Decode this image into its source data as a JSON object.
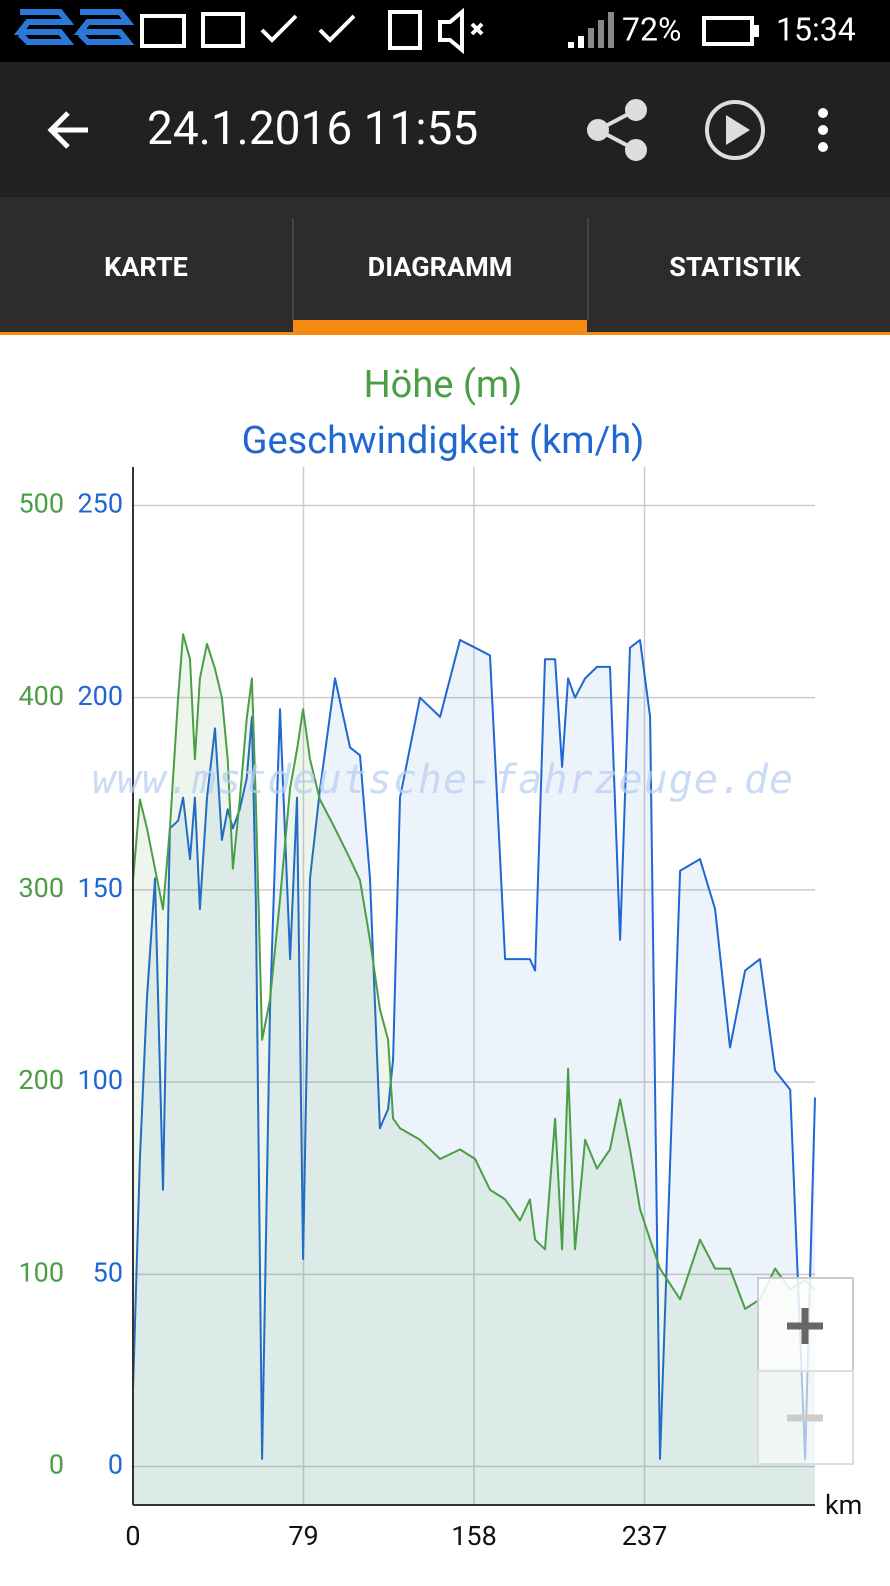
{
  "status_bar": {
    "battery": "72%",
    "time": "15:34"
  },
  "app_bar": {
    "title": "24.1.2016 11:55"
  },
  "tabs": [
    "KARTE",
    "DIAGRAMM",
    "STATISTIK"
  ],
  "watermark": "www.mstdeutsche-fahrzeuge.de",
  "chart_data": {
    "type": "line",
    "area": true,
    "grid": true,
    "x_label": "km",
    "xlim": [
      0,
      316
    ],
    "xticks": [
      0,
      79,
      158,
      237
    ],
    "ylim": [
      -10,
      260
    ],
    "yticks": [
      0,
      50,
      100,
      150,
      200,
      250
    ],
    "y2lim": [
      -20,
      520
    ],
    "y2ticks": [
      0,
      100,
      200,
      300,
      400,
      500
    ],
    "x": [
      0,
      3.2,
      6.5,
      10.2,
      13.9,
      17.1,
      20.9,
      23.2,
      26.4,
      28.7,
      31.0,
      34.3,
      38.0,
      41.2,
      43.9,
      46.3,
      49.5,
      52.7,
      55.1,
      56.9,
      59.8,
      63.5,
      68.1,
      72.8,
      76.0,
      78.8,
      82.0,
      86.6,
      93.6,
      100.6,
      105.2,
      109.8,
      114.4,
      118.2,
      120.5,
      123.7,
      133.0,
      142.3,
      151.5,
      158.5,
      165.4,
      172.4,
      179.3,
      183.9,
      186.3,
      190.9,
      195.6,
      198.8,
      201.6,
      204.8,
      209.5,
      215.0,
      221.0,
      225.7,
      230.3,
      234.9,
      239.6,
      244.2,
      253.5,
      262.7,
      269.7,
      276.6,
      283.6,
      290.5,
      297.5,
      304.5,
      311.4,
      316.0
    ],
    "series": [
      {
        "name": "Höhe (m)",
        "color": "#4a9e45",
        "axis": "y2",
        "values": [
          305,
          347,
          332,
          311,
          290,
          332,
          400,
          433,
          420,
          368,
          410,
          428,
          415,
          400,
          368,
          311,
          347,
          389,
          410,
          347,
          222,
          243,
          295,
          353,
          373,
          394,
          368,
          347,
          332,
          316,
          305,
          274,
          238,
          222,
          181,
          176,
          170,
          160,
          165,
          160,
          144,
          139,
          128,
          139,
          118,
          113,
          181,
          113,
          207,
          113,
          170,
          155,
          165,
          191,
          165,
          134,
          118,
          103,
          87,
          118,
          103,
          103,
          82,
          87,
          103,
          92,
          97,
          92
        ]
      },
      {
        "name": "Geschwindigkeit (km/h)",
        "color": "#1f67d2",
        "values": [
          20,
          80,
          122,
          153,
          72,
          166,
          168,
          174,
          158,
          174,
          145,
          174,
          192,
          163,
          171,
          166,
          171,
          179,
          195,
          148,
          2,
          119,
          197,
          132,
          174,
          54,
          153,
          176,
          205,
          187,
          185,
          153,
          88,
          93,
          106,
          174,
          200,
          195,
          215,
          213,
          211,
          132,
          132,
          132,
          129,
          210,
          210,
          182,
          205,
          200,
          205,
          208,
          208,
          137,
          213,
          215,
          195,
          2,
          155,
          158,
          145,
          109,
          129,
          132,
          103,
          98,
          2,
          96
        ]
      }
    ]
  }
}
